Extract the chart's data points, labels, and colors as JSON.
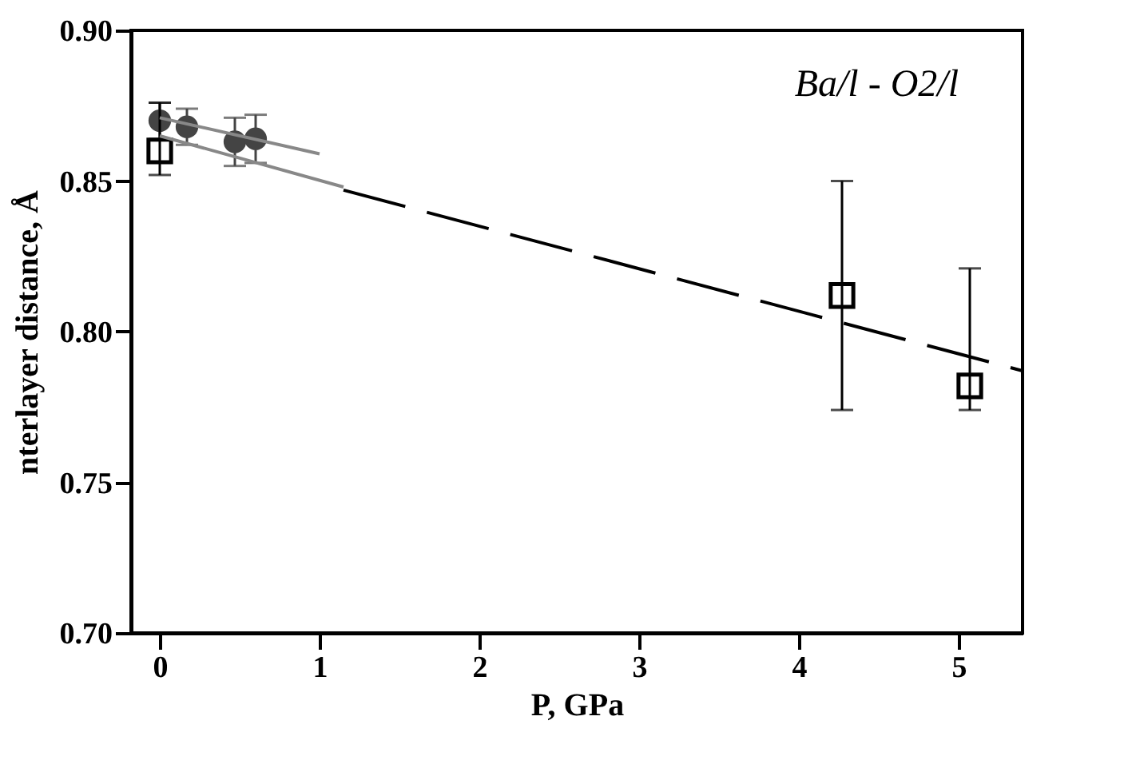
{
  "chart_data": {
    "type": "scatter",
    "xlabel": "P, GPa",
    "ylabel": "nterlayer distance, Å",
    "annotations": [
      "Ba/l - O2/l"
    ],
    "xlim": [
      -0.18,
      5.4
    ],
    "xticks": [
      0,
      1,
      2,
      3,
      4,
      5
    ],
    "ylim": [
      0.7,
      0.9
    ],
    "yticks": [
      {
        "value": 0.7,
        "label": "0.70"
      },
      0.75,
      {
        "value": 0.8,
        "label": "0.80"
      },
      0.85,
      {
        "value": 0.9,
        "label": "0.90"
      }
    ],
    "grid": false,
    "series": [
      {
        "marker": "circle",
        "color": "#444444",
        "x": [
          0,
          0.17,
          0.47,
          0.6
        ],
        "values": [
          0.87,
          0.868,
          0.863,
          0.864
        ],
        "errors": [
          0.006,
          0.006,
          0.008,
          0.008
        ]
      },
      {
        "marker": "square",
        "color": "#000000",
        "x": [
          0,
          4.27,
          5.07
        ],
        "values": [
          0.86,
          0.812,
          0.782
        ],
        "errors": [
          [
            0.852,
            0.876
          ],
          [
            0.774,
            0.85
          ],
          [
            0.774,
            0.821
          ]
        ]
      },
      {
        "type": "line",
        "line_style": "solid",
        "color": "#888888",
        "x": [
          0,
          1
        ],
        "values": [
          0.871,
          0.859
        ]
      },
      {
        "type": "line",
        "line_style": "solid",
        "color": "#888888",
        "x": [
          0,
          1.15
        ],
        "values": [
          0.865,
          0.848
        ]
      },
      {
        "type": "line",
        "line_style": "dashed",
        "color": "#000000",
        "x": [
          1.15,
          5.4
        ],
        "values": [
          0.847,
          0.787
        ]
      }
    ]
  }
}
